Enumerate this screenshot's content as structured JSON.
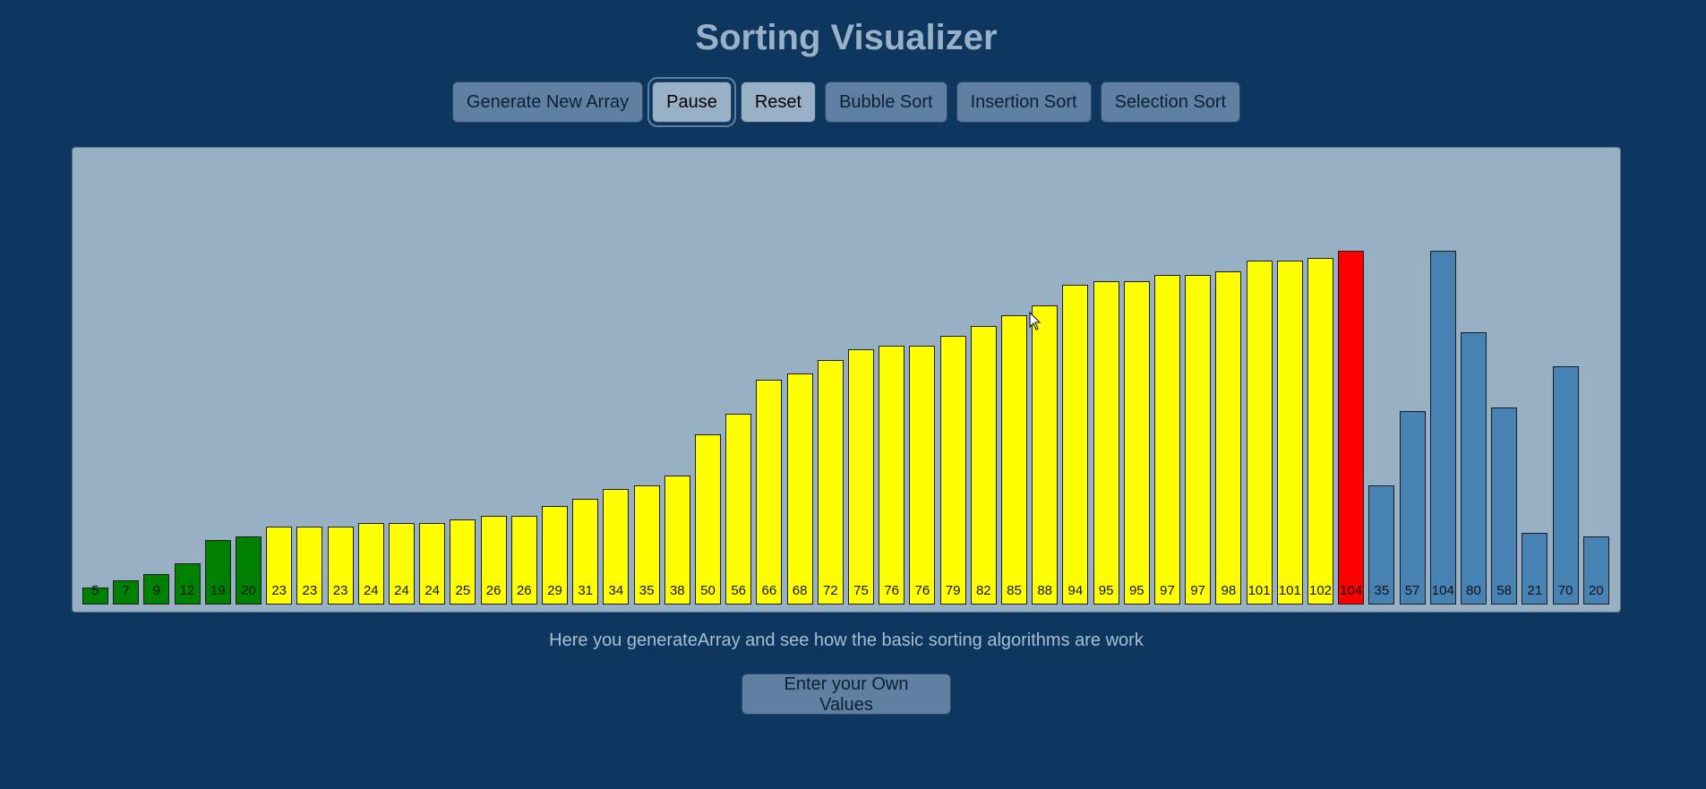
{
  "header": {
    "title": "Sorting Visualizer"
  },
  "toolbar": {
    "buttons": [
      {
        "id": "generate",
        "label": "Generate New Array",
        "state": "normal"
      },
      {
        "id": "pause",
        "label": "Pause",
        "state": "active"
      },
      {
        "id": "reset",
        "label": "Reset",
        "state": "light"
      },
      {
        "id": "bubble",
        "label": "Bubble Sort",
        "state": "normal"
      },
      {
        "id": "insertion",
        "label": "Insertion Sort",
        "state": "normal"
      },
      {
        "id": "selection",
        "label": "Selection Sort",
        "state": "normal"
      }
    ]
  },
  "colors": {
    "sorted": "#008000",
    "compared": "#ffff00",
    "current": "#ff0000",
    "unsorted": "#4682b4"
  },
  "chart_data": {
    "type": "bar",
    "ylim": [
      0,
      112
    ],
    "bars": [
      {
        "value": 5,
        "state": "sorted"
      },
      {
        "value": 7,
        "state": "sorted"
      },
      {
        "value": 9,
        "state": "sorted"
      },
      {
        "value": 12,
        "state": "sorted"
      },
      {
        "value": 19,
        "state": "sorted"
      },
      {
        "value": 20,
        "state": "sorted"
      },
      {
        "value": 23,
        "state": "compared"
      },
      {
        "value": 23,
        "state": "compared"
      },
      {
        "value": 23,
        "state": "compared"
      },
      {
        "value": 24,
        "state": "compared"
      },
      {
        "value": 24,
        "state": "compared"
      },
      {
        "value": 24,
        "state": "compared"
      },
      {
        "value": 25,
        "state": "compared"
      },
      {
        "value": 26,
        "state": "compared"
      },
      {
        "value": 26,
        "state": "compared"
      },
      {
        "value": 29,
        "state": "compared"
      },
      {
        "value": 31,
        "state": "compared"
      },
      {
        "value": 34,
        "state": "compared"
      },
      {
        "value": 35,
        "state": "compared"
      },
      {
        "value": 38,
        "state": "compared"
      },
      {
        "value": 50,
        "state": "compared"
      },
      {
        "value": 56,
        "state": "compared"
      },
      {
        "value": 66,
        "state": "compared"
      },
      {
        "value": 68,
        "state": "compared"
      },
      {
        "value": 72,
        "state": "compared"
      },
      {
        "value": 75,
        "state": "compared"
      },
      {
        "value": 76,
        "state": "compared"
      },
      {
        "value": 76,
        "state": "compared"
      },
      {
        "value": 79,
        "state": "compared"
      },
      {
        "value": 82,
        "state": "compared"
      },
      {
        "value": 85,
        "state": "compared"
      },
      {
        "value": 88,
        "state": "compared"
      },
      {
        "value": 94,
        "state": "compared"
      },
      {
        "value": 95,
        "state": "compared"
      },
      {
        "value": 95,
        "state": "compared"
      },
      {
        "value": 97,
        "state": "compared"
      },
      {
        "value": 97,
        "state": "compared"
      },
      {
        "value": 98,
        "state": "compared"
      },
      {
        "value": 101,
        "state": "compared"
      },
      {
        "value": 101,
        "state": "compared"
      },
      {
        "value": 102,
        "state": "compared"
      },
      {
        "value": 104,
        "state": "current"
      },
      {
        "value": 35,
        "state": "unsorted"
      },
      {
        "value": 57,
        "state": "unsorted"
      },
      {
        "value": 104,
        "state": "unsorted"
      },
      {
        "value": 80,
        "state": "unsorted"
      },
      {
        "value": 58,
        "state": "unsorted"
      },
      {
        "value": 21,
        "state": "unsorted"
      },
      {
        "value": 70,
        "state": "unsorted"
      },
      {
        "value": 20,
        "state": "unsorted"
      }
    ]
  },
  "footer": {
    "caption": "Here you generateArray and see how the basic sorting algorithms are work",
    "own_values_label": "Enter your Own Values"
  }
}
